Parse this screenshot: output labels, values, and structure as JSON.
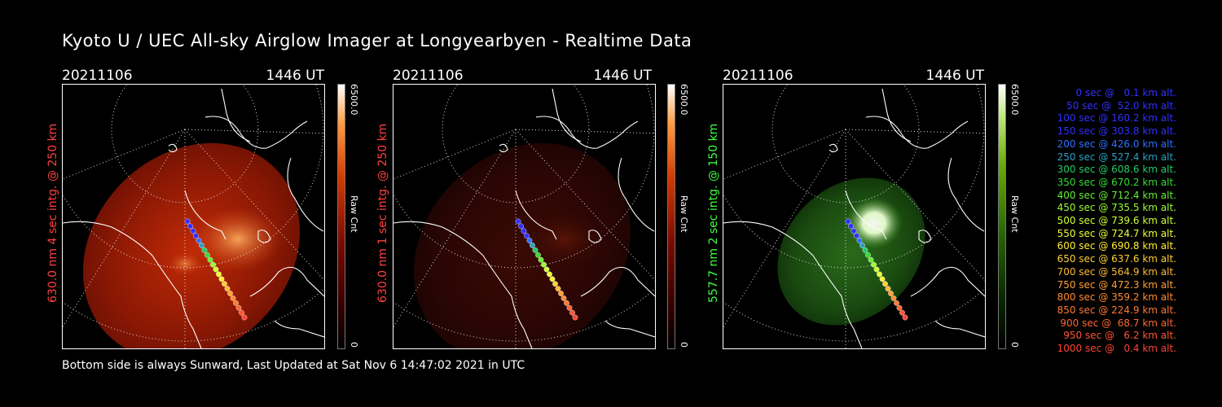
{
  "title": "Kyoto U / UEC All-sky Airglow Imager at Longyearbyen - Realtime Data",
  "panels": [
    {
      "date": "20211106",
      "time": "1446 UT",
      "label": "630.0 nm 4 sec intg. @ 250 km",
      "label_color": "#ff4040",
      "cbar_max": "6500.0",
      "cbar_min": "0",
      "cbar_unit": "Raw Cnt",
      "tint": "red",
      "brightness": "high"
    },
    {
      "date": "20211106",
      "time": "1446 UT",
      "label": "630.0 nm 1 sec intg. @ 250 km",
      "label_color": "#ff4040",
      "cbar_max": "6500.0",
      "cbar_min": "0",
      "cbar_unit": "Raw Cnt",
      "tint": "red",
      "brightness": "low"
    },
    {
      "date": "20211106",
      "time": "1446 UT",
      "label": "557.7 nm 2 sec intg. @ 150 km",
      "label_color": "#40ff40",
      "cbar_max": "6500.0",
      "cbar_min": "0",
      "cbar_unit": "Raw Cnt",
      "tint": "green",
      "brightness": "medium"
    }
  ],
  "footer": "Bottom side is always Sunward, Last Updated at Sat Nov  6 14:47:02 2021 in UTC",
  "legend": [
    {
      "text": "0 sec @   0.1 km alt.",
      "color": "#3030ff"
    },
    {
      "text": "50 sec @  52.0 km alt.",
      "color": "#3030ff"
    },
    {
      "text": "100 sec @ 160.2 km alt.",
      "color": "#3030ff"
    },
    {
      "text": "150 sec @ 303.8 km alt.",
      "color": "#3030ff"
    },
    {
      "text": "200 sec @ 426.0 km alt.",
      "color": "#2f6fff"
    },
    {
      "text": "250 sec @ 527.4 km alt.",
      "color": "#2aa0c0"
    },
    {
      "text": "300 sec @ 608.6 km alt.",
      "color": "#22cc66"
    },
    {
      "text": "350 sec @ 670.2 km alt.",
      "color": "#33dd33"
    },
    {
      "text": "400 sec @ 712.4 km alt.",
      "color": "#66ee33"
    },
    {
      "text": "450 sec @ 735.5 km alt.",
      "color": "#99ff33"
    },
    {
      "text": "500 sec @ 739.6 km alt.",
      "color": "#ccff33"
    },
    {
      "text": "550 sec @ 724.7 km alt.",
      "color": "#eeff33"
    },
    {
      "text": "600 sec @ 690.8 km alt.",
      "color": "#ffee33"
    },
    {
      "text": "650 sec @ 637.6 km alt.",
      "color": "#ffd033"
    },
    {
      "text": "700 sec @ 564.9 km alt.",
      "color": "#ffb833"
    },
    {
      "text": "750 sec @ 472.3 km alt.",
      "color": "#ffa033"
    },
    {
      "text": "800 sec @ 359.2 km alt.",
      "color": "#ff8c33"
    },
    {
      "text": "850 sec @ 224.9 km alt.",
      "color": "#ff7a33"
    },
    {
      "text": "900 sec @  68.7 km alt.",
      "color": "#ff6633"
    },
    {
      "text": "950 sec @   6.2 km alt.",
      "color": "#ff5533"
    },
    {
      "text": "1000 sec @   0.4 km alt.",
      "color": "#ff4433"
    }
  ]
}
